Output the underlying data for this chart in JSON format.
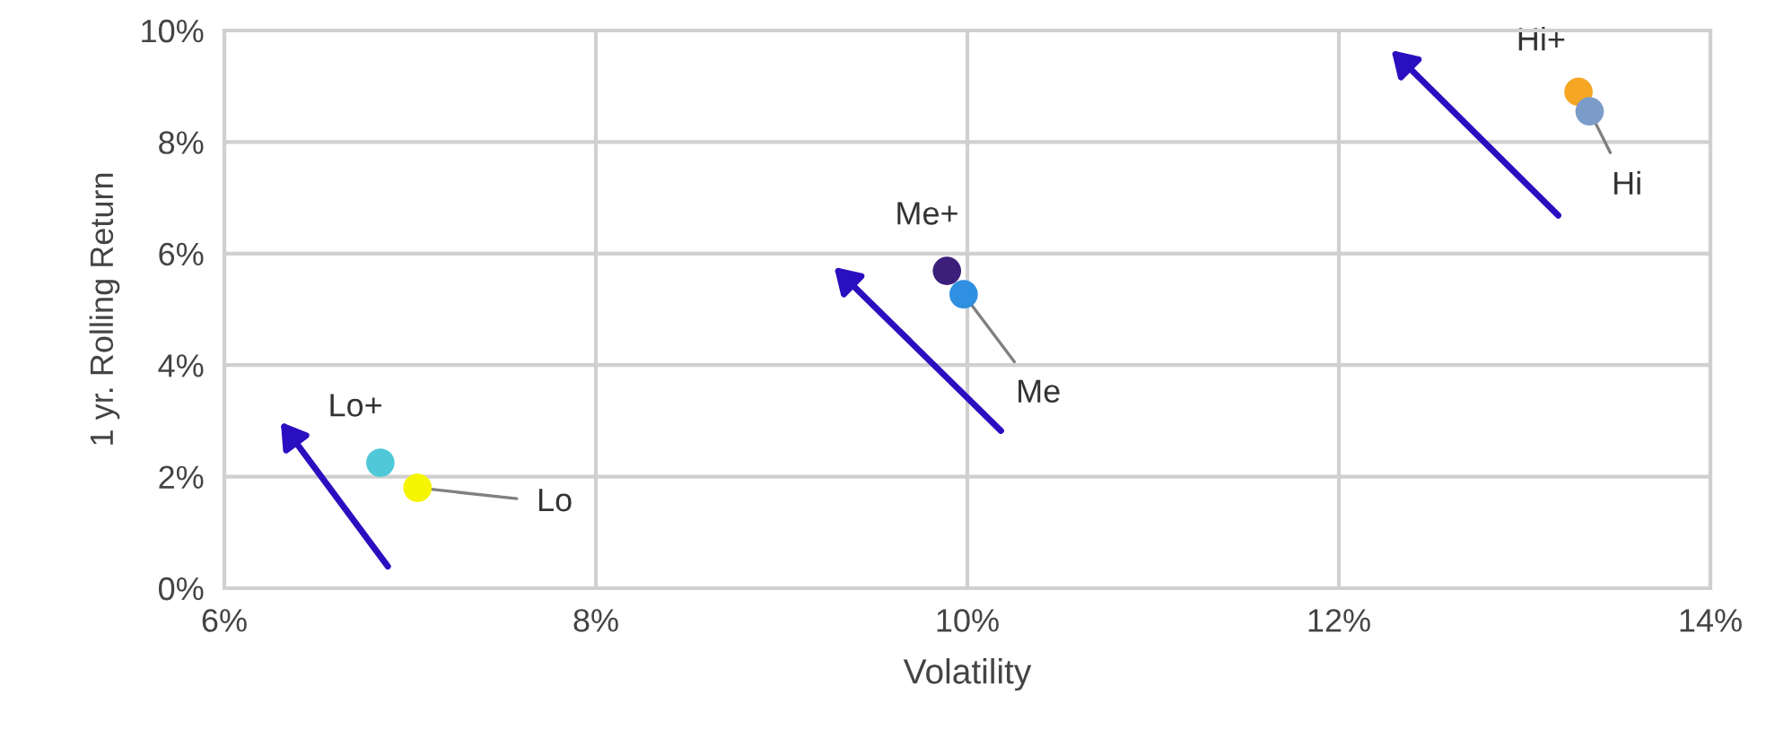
{
  "chart_data": {
    "type": "scatter",
    "xlabel": "Volatility",
    "ylabel": "1 yr. Rolling Return",
    "xlim": [
      6,
      14
    ],
    "ylim": [
      0,
      10
    ],
    "xticks": [
      {
        "value": 6,
        "label": "6%"
      },
      {
        "value": 8,
        "label": "8%"
      },
      {
        "value": 10,
        "label": "10%"
      },
      {
        "value": 12,
        "label": "12%"
      },
      {
        "value": 14,
        "label": "14%"
      }
    ],
    "yticks": [
      {
        "value": 0,
        "label": "0%"
      },
      {
        "value": 2,
        "label": "2%"
      },
      {
        "value": 4,
        "label": "4%"
      },
      {
        "value": 6,
        "label": "6%"
      },
      {
        "value": 8,
        "label": "8%"
      },
      {
        "value": 10,
        "label": "10%"
      }
    ],
    "grid": true,
    "legend": false,
    "marker": "circle",
    "series": [
      {
        "name": "Lo+",
        "color": "#4fc8d8",
        "x": [
          6.84
        ],
        "values": [
          2.25
        ]
      },
      {
        "name": "Lo",
        "color": "#f5f500",
        "x": [
          7.04
        ],
        "values": [
          1.8
        ]
      },
      {
        "name": "Me+",
        "color": "#3b1f7a",
        "x": [
          9.89
        ],
        "values": [
          5.69
        ]
      },
      {
        "name": "Me",
        "color": "#2f8fe0",
        "x": [
          9.98
        ],
        "values": [
          5.27
        ]
      },
      {
        "name": "Hi+",
        "color": "#f5a623",
        "x": [
          13.29
        ],
        "values": [
          8.9
        ]
      },
      {
        "name": "Hi",
        "color": "#7b9cc8",
        "x": [
          13.35
        ],
        "values": [
          8.55
        ]
      }
    ]
  }
}
